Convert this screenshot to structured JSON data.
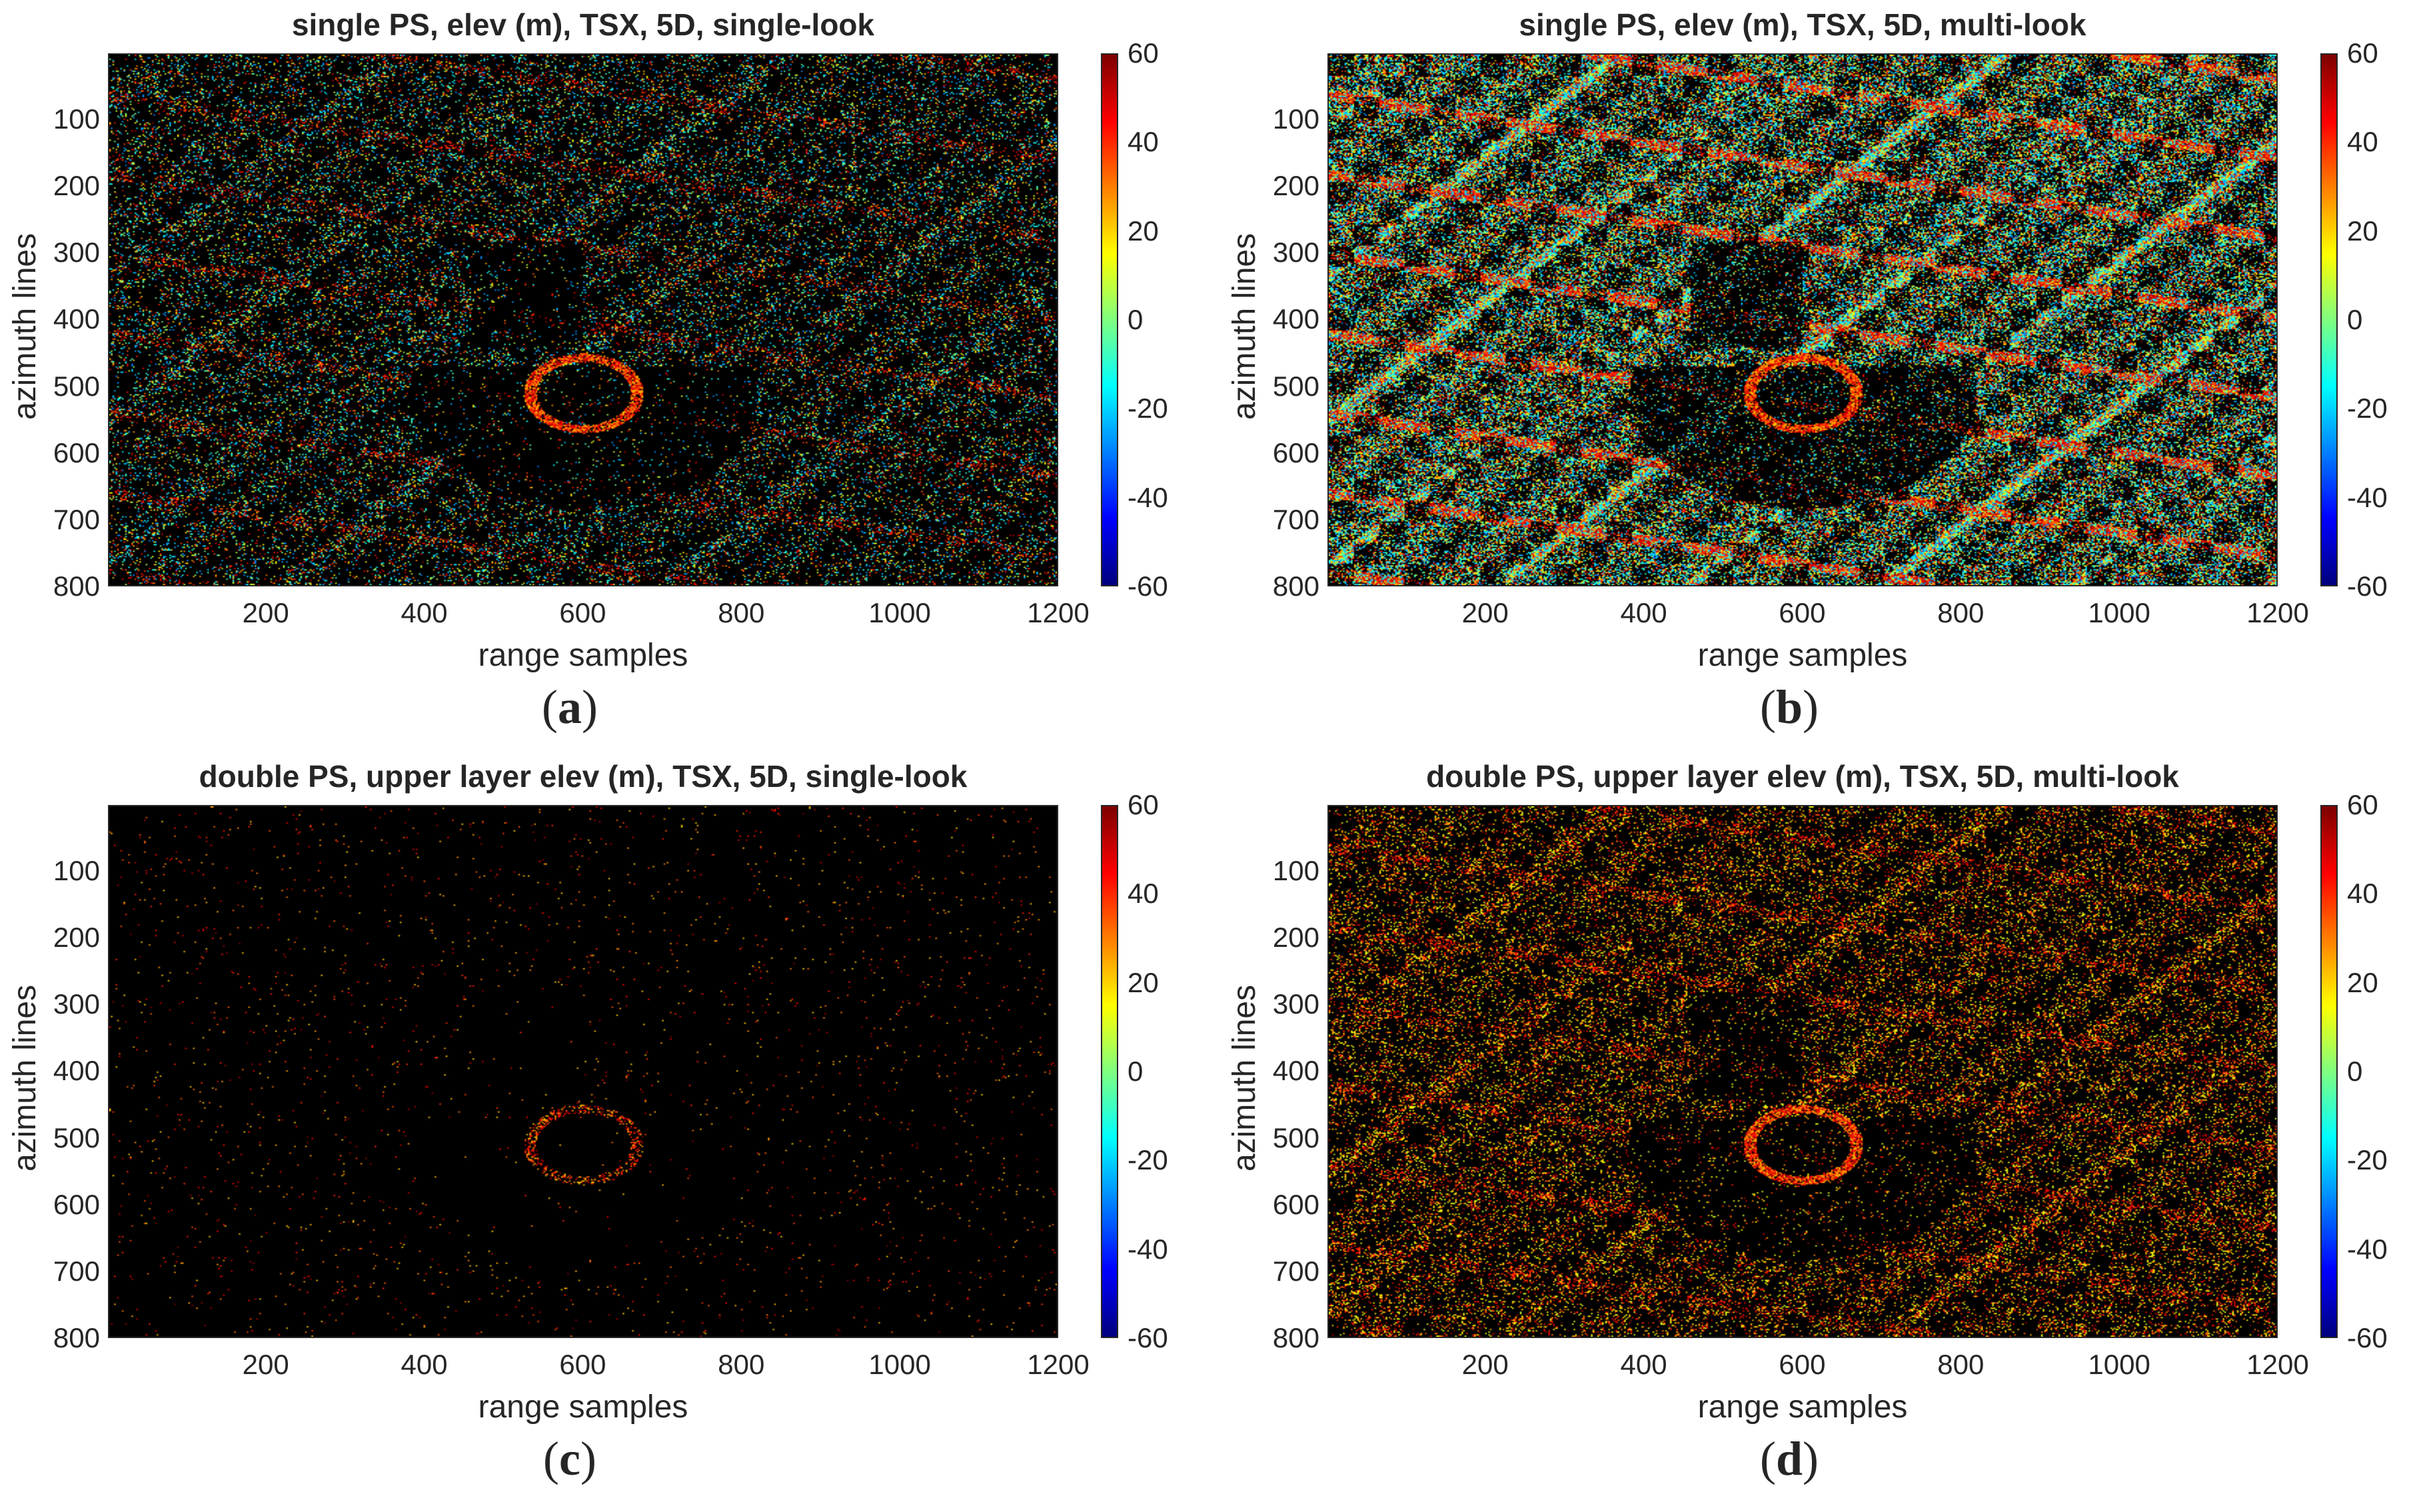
{
  "chart_data": [
    {
      "type": "heatmap",
      "panel_label": "a",
      "title": "single PS, elev (m), TSX, 5D, single-look",
      "xlabel": "range samples",
      "ylabel": "azimuth lines",
      "xlim": [
        1,
        1200
      ],
      "ylim": [
        1,
        800
      ],
      "xticks": [
        200,
        400,
        600,
        800,
        1000,
        1200
      ],
      "yticks": [
        100,
        200,
        300,
        400,
        500,
        600,
        700,
        800
      ],
      "colorbar": {
        "colormap": "jet",
        "clim": [
          -60,
          60
        ],
        "ticks": [
          60,
          40,
          20,
          0,
          -20,
          -40,
          -60
        ]
      },
      "background": "#000000",
      "density": "sparse",
      "scene_range_m": [
        -30,
        60
      ]
    },
    {
      "type": "heatmap",
      "panel_label": "b",
      "title": "single PS, elev (m), TSX, 5D, multi-look",
      "xlabel": "range samples",
      "ylabel": "azimuth lines",
      "xlim": [
        1,
        1200
      ],
      "ylim": [
        1,
        800
      ],
      "xticks": [
        200,
        400,
        600,
        800,
        1000,
        1200
      ],
      "yticks": [
        100,
        200,
        300,
        400,
        500,
        600,
        700,
        800
      ],
      "colorbar": {
        "colormap": "jet",
        "clim": [
          -60,
          60
        ],
        "ticks": [
          60,
          40,
          20,
          0,
          -20,
          -40,
          -60
        ]
      },
      "background": "#000000",
      "density": "dense",
      "scene_range_m": [
        -30,
        60
      ]
    },
    {
      "type": "heatmap",
      "panel_label": "c",
      "title": "double PS, upper layer elev (m), TSX, 5D, single-look",
      "xlabel": "range samples",
      "ylabel": "azimuth lines",
      "xlim": [
        1,
        1200
      ],
      "ylim": [
        1,
        800
      ],
      "xticks": [
        200,
        400,
        600,
        800,
        1000,
        1200
      ],
      "yticks": [
        100,
        200,
        300,
        400,
        500,
        600,
        700,
        800
      ],
      "colorbar": {
        "colormap": "jet",
        "clim": [
          -60,
          60
        ],
        "ticks": [
          60,
          40,
          20,
          0,
          -20,
          -40,
          -60
        ]
      },
      "background": "#000000",
      "density": "very sparse",
      "scene_range_m": [
        20,
        60
      ]
    },
    {
      "type": "heatmap",
      "panel_label": "d",
      "title": "double PS, upper layer elev (m), TSX, 5D, multi-look",
      "xlabel": "range samples",
      "ylabel": "azimuth lines",
      "xlim": [
        1,
        1200
      ],
      "ylim": [
        1,
        800
      ],
      "xticks": [
        200,
        400,
        600,
        800,
        1000,
        1200
      ],
      "yticks": [
        100,
        200,
        300,
        400,
        500,
        600,
        700,
        800
      ],
      "colorbar": {
        "colormap": "jet",
        "clim": [
          -60,
          60
        ],
        "ticks": [
          60,
          40,
          20,
          0,
          -20,
          -40,
          -60
        ]
      },
      "background": "#000000",
      "density": "medium",
      "scene_range_m": [
        10,
        60
      ]
    }
  ]
}
